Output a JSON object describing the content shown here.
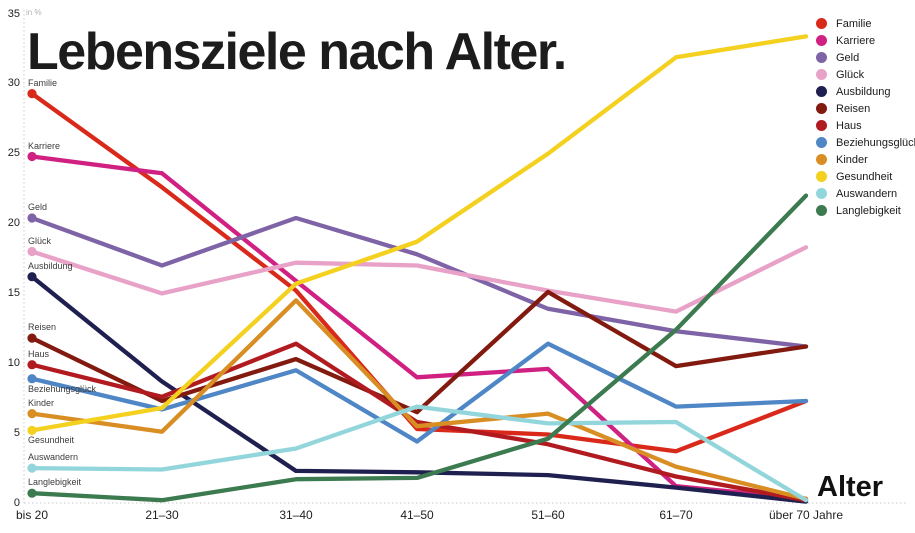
{
  "title": "Lebensziele nach Alter.",
  "y_axis": {
    "unit_label": "in %",
    "ticks": [
      35,
      30,
      25,
      20,
      15,
      10,
      5,
      0
    ]
  },
  "x_axis": {
    "label": "Alter",
    "categories": [
      "bis 20",
      "21–30",
      "31–40",
      "41–50",
      "51–60",
      "61–70",
      "über 70 Jahre"
    ]
  },
  "chart_data": {
    "type": "line",
    "title": "Lebensziele nach Alter.",
    "xlabel": "Alter",
    "ylabel": "in %",
    "ylim": [
      0,
      35
    ],
    "grid": false,
    "legend_position": "top-right",
    "categories": [
      "bis 20",
      "21–30",
      "31–40",
      "41–50",
      "51–60",
      "61–70",
      "über 70 Jahre"
    ],
    "series": [
      {
        "name": "Familie",
        "color": "#d9291b",
        "label_side": "above",
        "values": [
          29.3,
          22.6,
          15.2,
          5.3,
          4.9,
          3.7,
          7.3
        ]
      },
      {
        "name": "Karriere",
        "color": "#d02183",
        "label_side": "above",
        "values": [
          24.8,
          23.6,
          15.9,
          9.0,
          9.6,
          1.2,
          0.3
        ]
      },
      {
        "name": "Geld",
        "color": "#7e63a6",
        "label_side": "above",
        "values": [
          20.4,
          17.0,
          20.4,
          17.8,
          13.9,
          12.3,
          11.2
        ]
      },
      {
        "name": "Glück",
        "color": "#e8a2c8",
        "label_side": "above",
        "values": [
          18.0,
          15.0,
          17.2,
          17.0,
          15.2,
          13.7,
          18.3
        ]
      },
      {
        "name": "Ausbildung",
        "color": "#1f2050",
        "label_side": "above",
        "values": [
          16.2,
          8.7,
          2.3,
          2.2,
          2.0,
          1.1,
          0.1
        ]
      },
      {
        "name": "Reisen",
        "color": "#821a0f",
        "label_side": "above",
        "values": [
          11.8,
          7.3,
          10.3,
          6.5,
          15.1,
          9.8,
          11.2
        ]
      },
      {
        "name": "Haus",
        "color": "#b11b20",
        "label_side": "above",
        "values": [
          9.9,
          7.6,
          11.4,
          5.8,
          4.2,
          1.9,
          0.2
        ]
      },
      {
        "name": "Beziehungsglück",
        "color": "#4e86c6",
        "label_side": "below",
        "values": [
          8.9,
          6.7,
          9.5,
          4.4,
          11.4,
          6.9,
          7.3
        ]
      },
      {
        "name": "Kinder",
        "color": "#d98e24",
        "label_side": "above",
        "values": [
          6.4,
          5.1,
          14.5,
          5.5,
          6.4,
          2.6,
          0.3
        ]
      },
      {
        "name": "Gesundheit",
        "color": "#f4d01f",
        "label_side": "below",
        "values": [
          5.2,
          6.8,
          15.7,
          18.7,
          25.0,
          31.9,
          33.4
        ]
      },
      {
        "name": "Auswandern",
        "color": "#92d6dc",
        "label_side": "above",
        "values": [
          2.5,
          2.4,
          3.9,
          6.9,
          5.7,
          5.8,
          0.2
        ]
      },
      {
        "name": "Langlebigkeit",
        "color": "#3c7a50",
        "label_side": "above",
        "values": [
          0.7,
          0.2,
          1.7,
          1.8,
          4.6,
          12.4,
          22.0
        ]
      }
    ]
  }
}
